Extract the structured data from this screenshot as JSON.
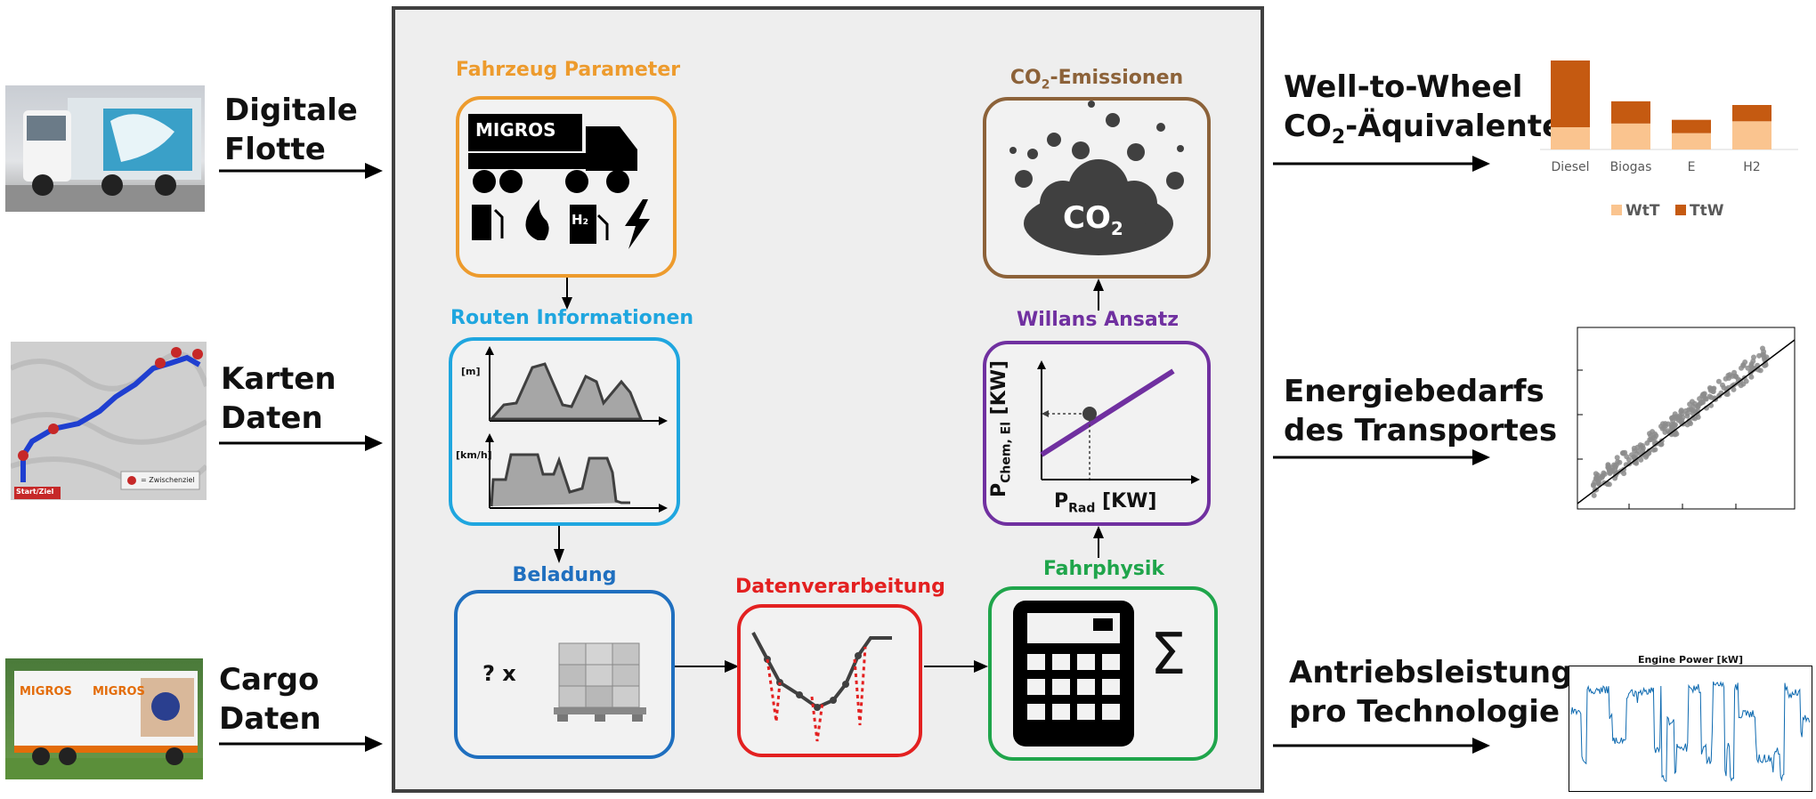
{
  "inputs": [
    {
      "line1": "Digitale",
      "line2": "Flotte"
    },
    {
      "line1": "Karten",
      "line2": "Daten"
    },
    {
      "line1": "Cargo",
      "line2": "Daten"
    }
  ],
  "map_legend": {
    "start": "Start/Ziel",
    "via": "= Zwischenziel"
  },
  "truck_brand": "MIGROS",
  "boxes": {
    "fahrzeug": {
      "title": "Fahrzeug Parameter",
      "brand": "MIGROS",
      "h2": "H₂"
    },
    "routen": {
      "title": "Routen Informationen",
      "unit_top": "[m]",
      "unit_bottom": "[km/h]"
    },
    "beladung": {
      "title": "Beladung",
      "text": "? x"
    },
    "daten": {
      "title": "Datenverarbeitung"
    },
    "fahrphysik": {
      "title": "Fahrphysik",
      "sigma": "Σ"
    },
    "willans": {
      "title": "Willans Ansatz",
      "yaxis": "P",
      "yaxis_sub": "Chem, El",
      "yaxis_unit": "[KW]",
      "xaxis": "P",
      "xaxis_sub": "Rad",
      "xaxis_unit": "[KW]"
    },
    "co2": {
      "title_pre": "CO",
      "title_sub": "2",
      "title_post": "-Emissionen",
      "cloud_text": "CO",
      "cloud_sub": "2"
    }
  },
  "outputs": [
    {
      "line1": "Well-to-Wheel",
      "line2_pre": "CO",
      "line2_sub": "2",
      "line2_post": "-Äquivalente"
    },
    {
      "line1": "Energiebedarfs",
      "line2": "des Transportes"
    },
    {
      "line1": "Antriebsleistung",
      "line2": "pro Technologie"
    }
  ],
  "colors": {
    "fahrzeug": "#ed9b2d",
    "routen": "#1fa6df",
    "beladung": "#1f6fbf",
    "daten": "#e32020",
    "fahrphysik": "#1fa54b",
    "willans": "#7030a0",
    "co2": "#8c6239",
    "wtt": "#fac48f",
    "ttw": "#c55a11"
  },
  "chart_data": [
    {
      "type": "bar",
      "categories": [
        "Diesel",
        "Biogas",
        "E",
        "H2"
      ],
      "series": [
        {
          "name": "WtT",
          "values": [
            30,
            35,
            22,
            38
          ]
        },
        {
          "name": "TtW",
          "values": [
            90,
            30,
            18,
            22
          ]
        }
      ],
      "stacked": true,
      "legend": "bottom"
    },
    {
      "type": "scatter",
      "grid": false
    },
    {
      "type": "line",
      "title": "Engine Power [kW]"
    }
  ]
}
